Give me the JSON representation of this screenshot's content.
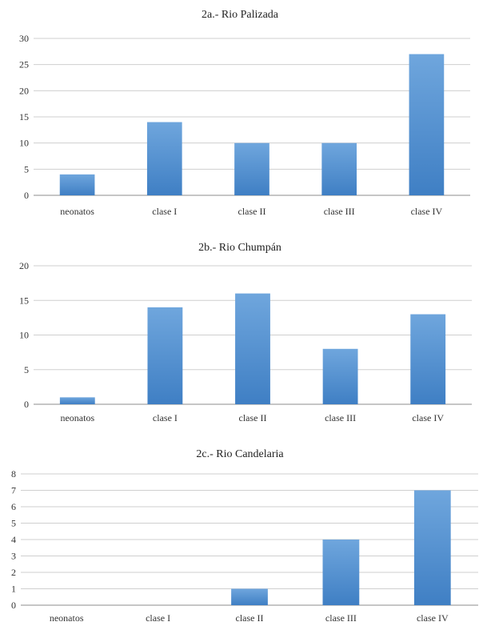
{
  "colors": {
    "bar_top": "#6fa6dd",
    "bar_bottom": "#3f7fc4"
  },
  "chart_data": [
    {
      "type": "bar",
      "title": "2a.- Rio Palizada",
      "categories": [
        "neonatos",
        "clase I",
        "clase II",
        "clase III",
        "clase IV"
      ],
      "values": [
        4,
        14,
        10,
        10,
        27
      ],
      "ylim": [
        0,
        30
      ],
      "yticks": [
        0,
        5,
        10,
        15,
        20,
        25,
        30
      ],
      "grid": true,
      "legend": "none"
    },
    {
      "type": "bar",
      "title": "2b.- Rio Chumpán",
      "categories": [
        "neonatos",
        "clase I",
        "clase II",
        "clase III",
        "clase IV"
      ],
      "values": [
        1,
        14,
        16,
        8,
        13
      ],
      "ylim": [
        0,
        20
      ],
      "yticks": [
        0,
        5,
        10,
        15,
        20
      ],
      "grid": true,
      "legend": "none"
    },
    {
      "type": "bar",
      "title": "2c.- Rio Candelaria",
      "categories": [
        "neonatos",
        "clase I",
        "clase II",
        "clase III",
        "clase IV"
      ],
      "values": [
        0,
        0,
        1,
        4,
        7
      ],
      "ylim": [
        0,
        8
      ],
      "yticks": [
        0,
        1,
        2,
        3,
        4,
        5,
        6,
        7,
        8
      ],
      "grid": true,
      "legend": "none"
    }
  ]
}
